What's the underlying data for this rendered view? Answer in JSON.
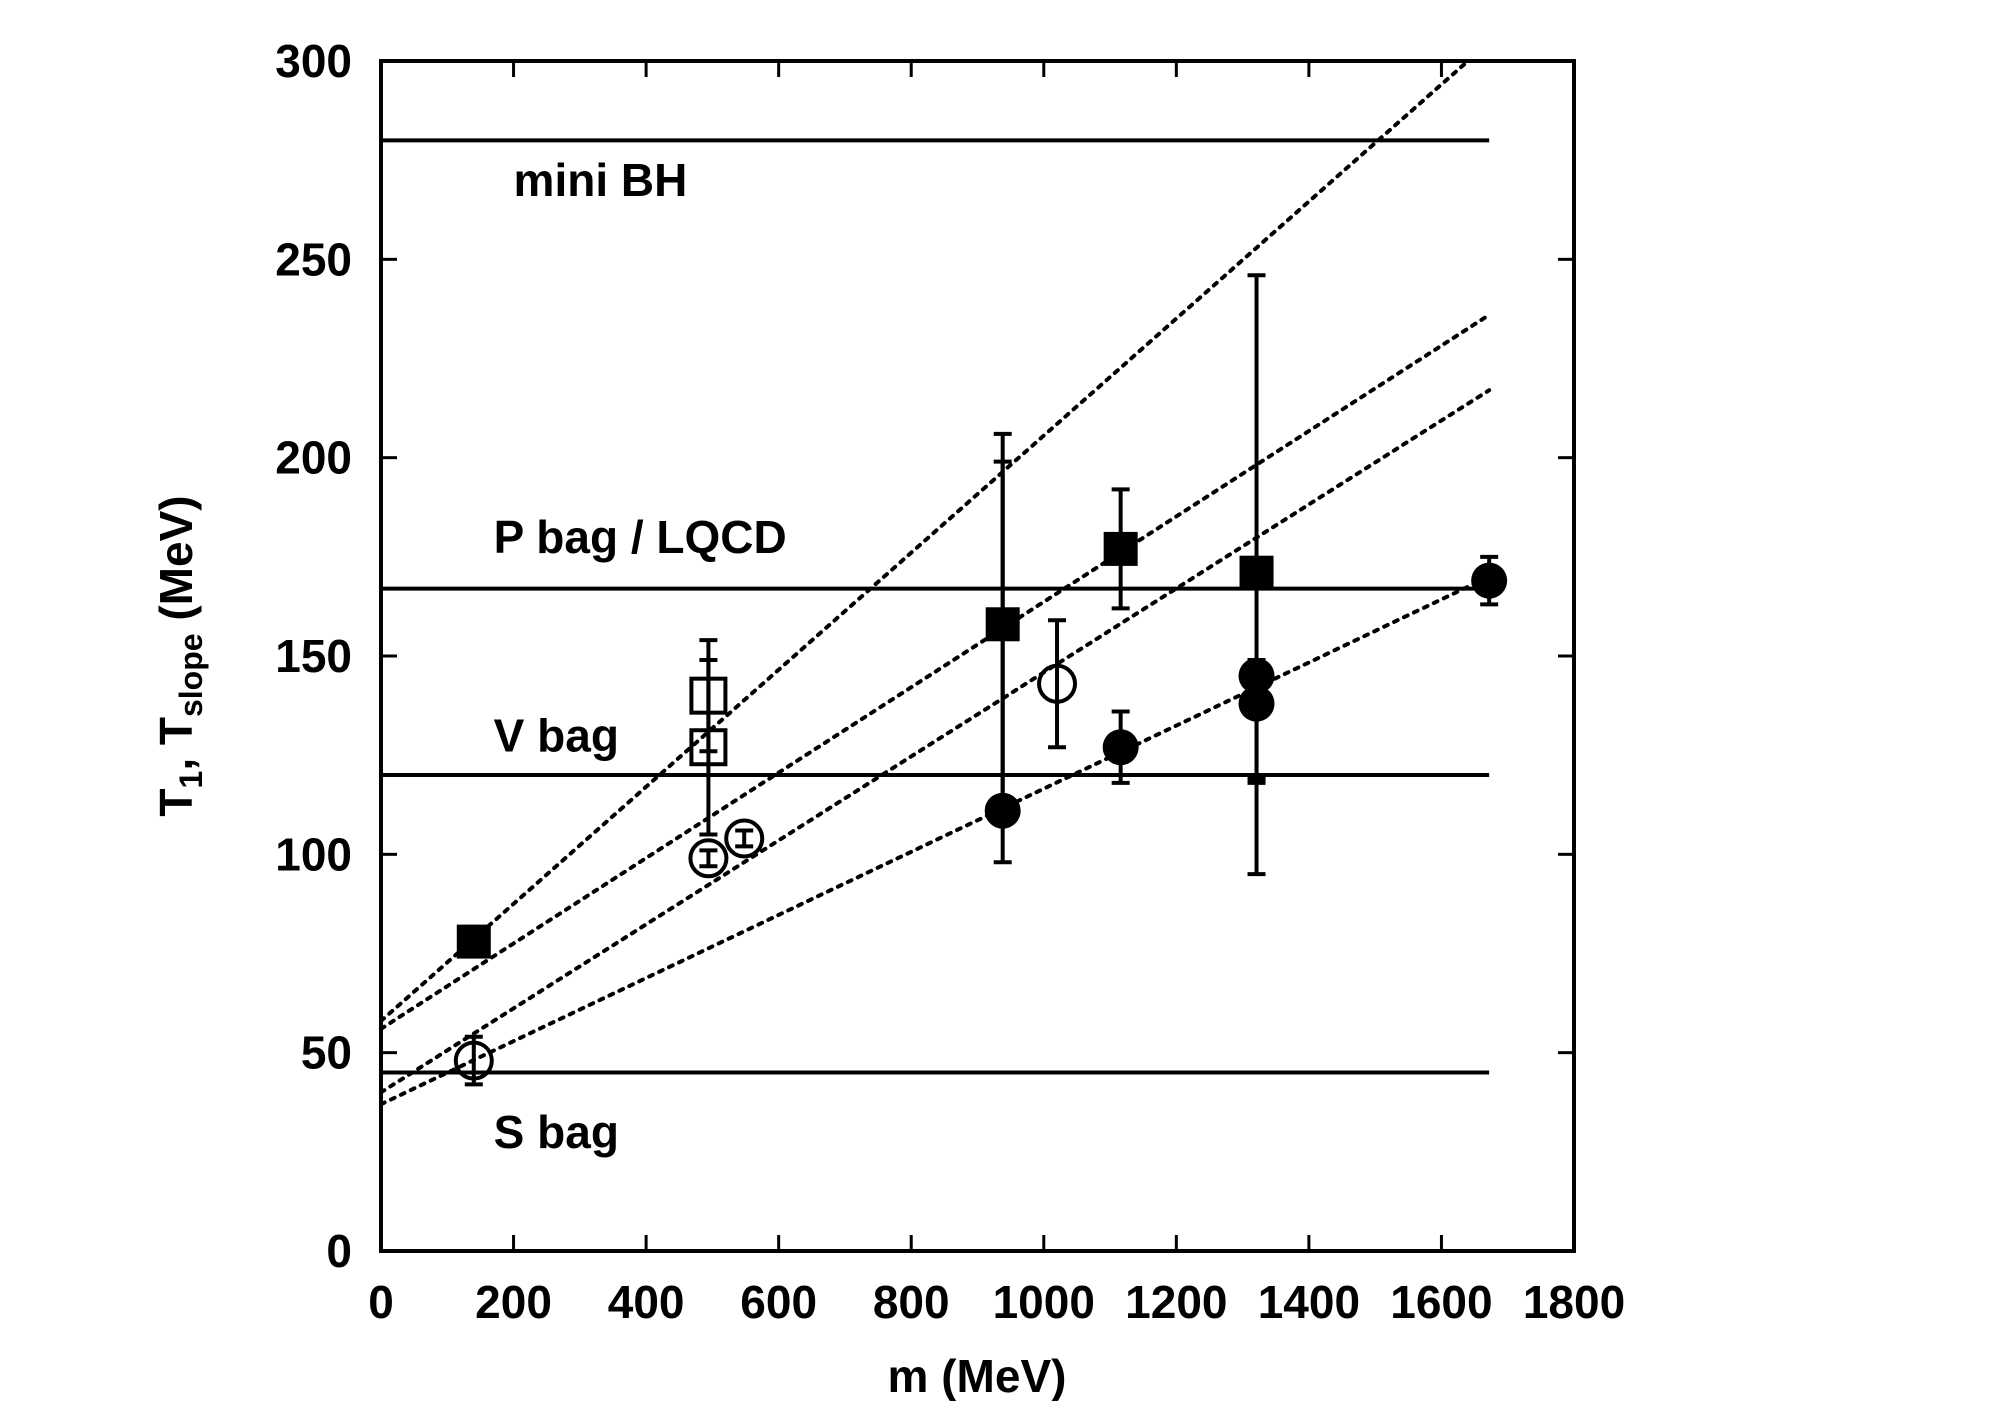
{
  "chart_data": {
    "type": "scatter",
    "xlabel": "m  (MeV)",
    "ylabel": {
      "main": "T",
      "sub1": "1",
      "sep": ",  T",
      "sub2": "slope",
      "tail": "  (MeV)"
    },
    "xlim": [
      0,
      1800
    ],
    "ylim": [
      0,
      300
    ],
    "xticks": [
      0,
      200,
      400,
      600,
      800,
      1000,
      1200,
      1400,
      1600,
      1800
    ],
    "yticks": [
      0,
      50,
      100,
      150,
      200,
      250,
      300
    ],
    "grid": false,
    "reference_lines": [
      {
        "label": "mini BH",
        "y": 280,
        "x_range": [
          0,
          1672
        ],
        "label_at": [
          200,
          270
        ]
      },
      {
        "label": "P bag / LQCD",
        "y": 167,
        "x_range": [
          0,
          1672
        ],
        "label_at": [
          170,
          180
        ]
      },
      {
        "label": "V bag",
        "y": 120,
        "x_range": [
          0,
          1672
        ],
        "label_at": [
          170,
          130
        ]
      },
      {
        "label": "S bag",
        "y": 45,
        "x_range": [
          0,
          1672
        ],
        "label_at": [
          170,
          30
        ]
      }
    ],
    "fit_lines": [
      {
        "style": "dotted",
        "points": [
          [
            0,
            58
          ],
          [
            1640,
            300
          ]
        ]
      },
      {
        "style": "dotted",
        "points": [
          [
            0,
            56
          ],
          [
            1672,
            236
          ]
        ]
      },
      {
        "style": "dotted",
        "points": [
          [
            0,
            40
          ],
          [
            1672,
            217
          ]
        ]
      },
      {
        "style": "dotted",
        "points": [
          [
            0,
            37
          ],
          [
            1672,
            170
          ]
        ]
      }
    ],
    "series": [
      {
        "marker": "filled-square",
        "points": [
          {
            "x": 140,
            "y": 78,
            "err": 2
          },
          {
            "x": 938,
            "y": 158,
            "err_low": 60,
            "err_high": 48
          },
          {
            "x": 1116,
            "y": 177,
            "err": 15
          },
          {
            "x": 1321,
            "y": 171,
            "err_low": 52,
            "err_high": 75
          }
        ]
      },
      {
        "marker": "open-square",
        "points": [
          {
            "x": 494,
            "y": 140,
            "err": 14
          },
          {
            "x": 494,
            "y": 127,
            "err": 22
          }
        ]
      },
      {
        "marker": "open-circle",
        "points": [
          {
            "x": 140,
            "y": 48,
            "err": 6
          },
          {
            "x": 494,
            "y": 99,
            "err": 2
          },
          {
            "x": 548,
            "y": 104,
            "err": 2
          },
          {
            "x": 1020,
            "y": 143,
            "err": 16
          }
        ]
      },
      {
        "marker": "filled-circle",
        "points": [
          {
            "x": 938,
            "y": 111,
            "err_low": 2,
            "err_high": 88
          },
          {
            "x": 1116,
            "y": 127,
            "err": 9
          },
          {
            "x": 1321,
            "y": 145,
            "err_low": 50,
            "err_high": 4
          },
          {
            "x": 1321,
            "y": 138,
            "err_low": 20,
            "err_high": 4
          },
          {
            "x": 1672,
            "y": 169,
            "err": 6
          }
        ]
      }
    ]
  }
}
